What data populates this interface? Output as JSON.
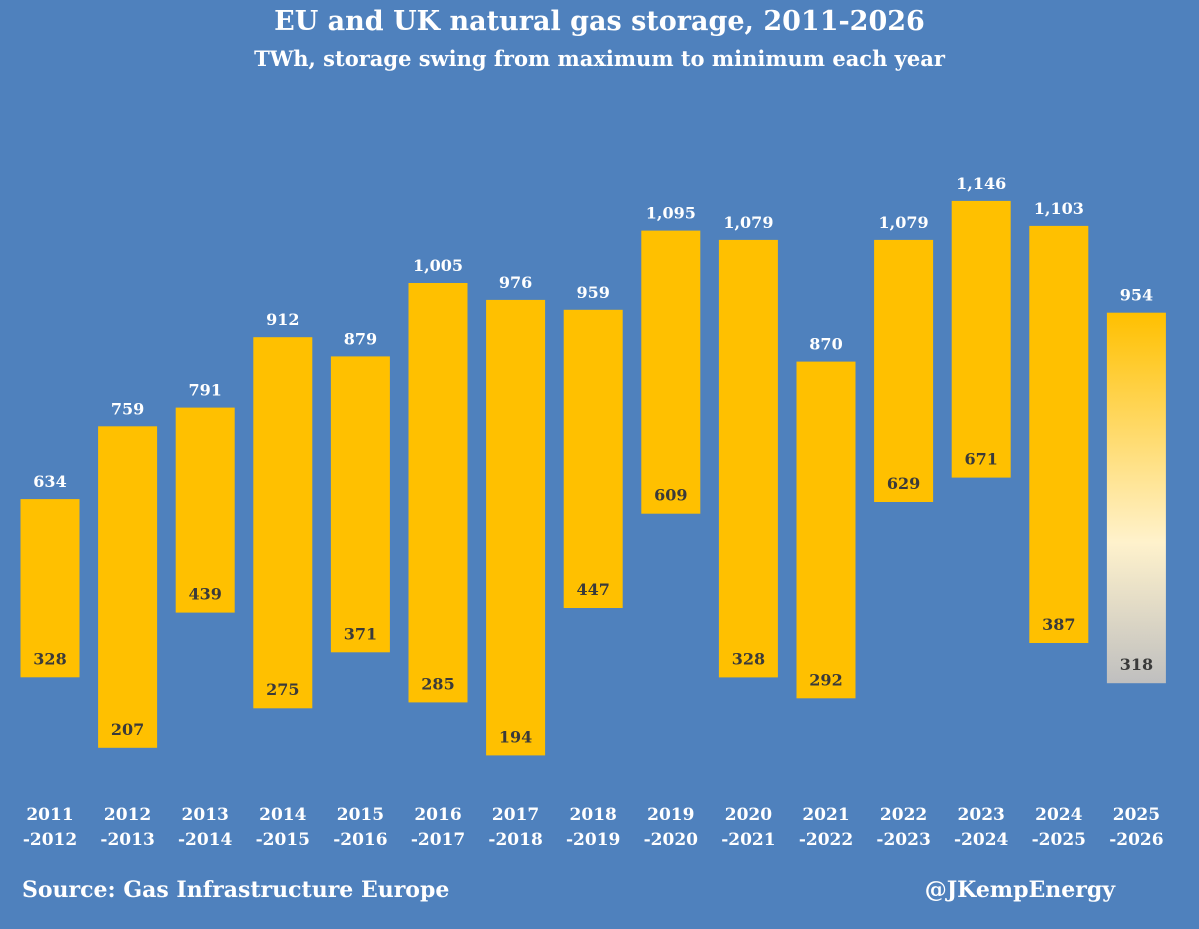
{
  "header": {
    "title": "EU and UK natural gas storage, 2011-2026",
    "subtitle": "TWh, storage swing from maximum to minimum each year"
  },
  "footer": {
    "source": "Source: Gas Infrastructure Europe",
    "handle": "@JKempEnergy"
  },
  "colors": {
    "background": "#4f81bd",
    "bar": "#ffc000",
    "latest_bar_top": "#ffc000",
    "latest_bar_mid": "#fff2cc",
    "latest_bar_bottom": "#bfbfbf",
    "max_label": "#ffffff",
    "min_label": "#3a3a3a"
  },
  "chart_data": {
    "type": "bar",
    "subtype": "floating-range",
    "title": "EU and UK natural gas storage, 2011-2026",
    "ylabel": "TWh",
    "categories": [
      [
        "2011",
        "-2012"
      ],
      [
        "2012",
        "-2013"
      ],
      [
        "2013",
        "-2014"
      ],
      [
        "2014",
        "-2015"
      ],
      [
        "2015",
        "-2016"
      ],
      [
        "2016",
        "-2017"
      ],
      [
        "2017",
        "-2018"
      ],
      [
        "2018",
        "-2019"
      ],
      [
        "2019",
        "-2020"
      ],
      [
        "2020",
        "-2021"
      ],
      [
        "2021",
        "-2022"
      ],
      [
        "2022",
        "-2023"
      ],
      [
        "2023",
        "-2024"
      ],
      [
        "2024",
        "-2025"
      ],
      [
        "2025",
        "-2026"
      ]
    ],
    "series": [
      {
        "name": "Maximum",
        "values": [
          634,
          759,
          791,
          912,
          879,
          1005,
          976,
          959,
          1095,
          1079,
          870,
          1079,
          1146,
          1103,
          954
        ],
        "labels": [
          "634",
          "759",
          "791",
          "912",
          "879",
          "1,005",
          "976",
          "959",
          "1,095",
          "1,079",
          "870",
          "1,079",
          "1,146",
          "1,103",
          "954"
        ]
      },
      {
        "name": "Minimum",
        "values": [
          328,
          207,
          439,
          275,
          371,
          285,
          194,
          447,
          609,
          328,
          292,
          629,
          671,
          387,
          318
        ],
        "labels": [
          "328",
          "207",
          "439",
          "275",
          "371",
          "285",
          "194",
          "447",
          "609",
          "328",
          "292",
          "629",
          "671",
          "387",
          "318"
        ]
      }
    ],
    "ylim": [
      0,
      1200
    ],
    "grid": false,
    "legend": "none"
  }
}
